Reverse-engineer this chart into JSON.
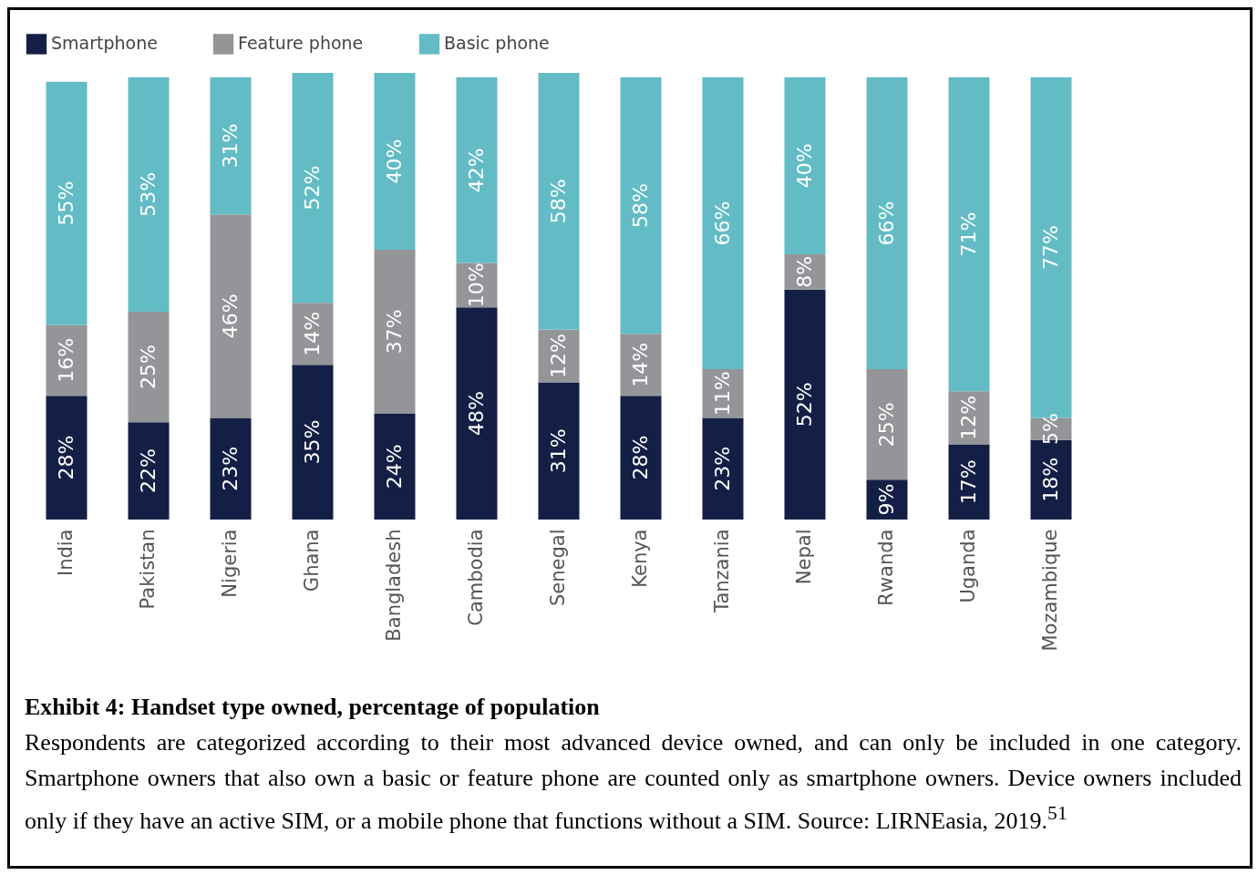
{
  "chart_data": {
    "type": "bar",
    "stacked": true,
    "title": "Exhibit 4: Handset type owned, percentage of population",
    "categories": [
      "India",
      "Pakistan",
      "Nigeria",
      "Ghana",
      "Bangladesh",
      "Cambodia",
      "Senegal",
      "Kenya",
      "Tanzania",
      "Nepal",
      "Rwanda",
      "Uganda",
      "Mozambique"
    ],
    "series": [
      {
        "name": "Smartphone",
        "color": "#131f45",
        "values": [
          28,
          22,
          23,
          35,
          24,
          48,
          31,
          28,
          23,
          52,
          9,
          17,
          18
        ],
        "value_labels": [
          "28%",
          "22%",
          "23%",
          "35%",
          "24%",
          "48%",
          "31%",
          "28%",
          "23%",
          "52%",
          "9%",
          "17%",
          "18%"
        ]
      },
      {
        "name": "Feature phone",
        "color": "#939598",
        "values": [
          16,
          25,
          46,
          14,
          37,
          10,
          12,
          14,
          11,
          8,
          25,
          12,
          5
        ],
        "value_labels": [
          "16%",
          "25%",
          "46%",
          "14%",
          "37%",
          "10%",
          "12%",
          "14%",
          "11%",
          "8%",
          "25%",
          "12%",
          "5%"
        ]
      },
      {
        "name": "Basic phone",
        "color": "#63bcc5",
        "values": [
          55,
          53,
          31,
          52,
          40,
          42,
          58,
          58,
          66,
          40,
          66,
          71,
          77
        ],
        "value_labels": [
          "55%",
          "53%",
          "31%",
          "52%",
          "40%",
          "42%",
          "58%",
          "58%",
          "66%",
          "40%",
          "66%",
          "71%",
          "77%"
        ]
      }
    ],
    "legend": "top",
    "grid": false,
    "annotations": [
      "Respondents are categorized according to their most advanced device owned, and can only be included in one category. Smartphone owners that also own a basic or feature phone are counted only as smartphone owners. Device owners included only if they have an active SIM, or a mobile phone that functions without a SIM. Source: LIRNEasia, 2019.$^{51}$"
    ]
  }
}
